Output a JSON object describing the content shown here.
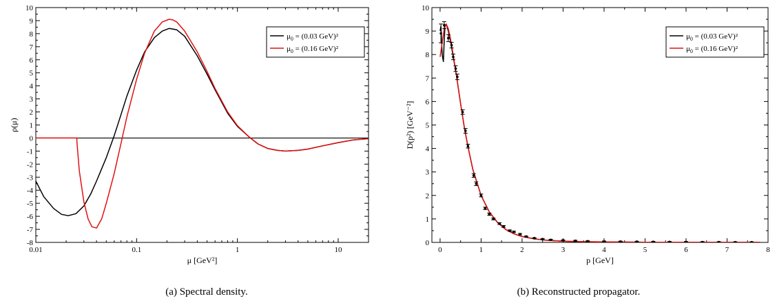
{
  "chart_data": [
    {
      "type": "line",
      "caption": "(a)  Spectral density.",
      "xlabel": "μ [GeV²]",
      "ylabel": "ρ(μ)",
      "xscale": "log",
      "xlim": [
        0.01,
        20
      ],
      "ylim": [
        -8,
        10
      ],
      "xticks": [
        {
          "v": 0.01,
          "label": "0.01"
        },
        {
          "v": 0.1,
          "label": "0.1"
        },
        {
          "v": 1,
          "label": "1"
        },
        {
          "v": 10,
          "label": "10"
        }
      ],
      "yticks": [
        -8,
        -7,
        -6,
        -5,
        -4,
        -3,
        -2,
        -1,
        0,
        1,
        2,
        3,
        4,
        5,
        6,
        7,
        8,
        9,
        10
      ],
      "legend_position": "top-right",
      "zero_line": true,
      "series": [
        {
          "name": "μ0 = (0.03 GeV)²",
          "color": "#000000",
          "x": [
            0.01,
            0.012,
            0.015,
            0.018,
            0.021,
            0.025,
            0.03,
            0.035,
            0.04,
            0.05,
            0.06,
            0.07,
            0.08,
            0.1,
            0.12,
            0.15,
            0.18,
            0.21,
            0.25,
            0.3,
            0.4,
            0.5,
            0.6,
            0.8,
            1.0,
            1.3,
            1.6,
            2.0,
            2.5,
            3.0,
            4.0,
            5.0,
            7.0,
            10,
            14,
            20
          ],
          "y": [
            -3.3,
            -4.5,
            -5.4,
            -5.85,
            -5.95,
            -5.8,
            -5.2,
            -4.3,
            -3.3,
            -1.5,
            0.2,
            1.8,
            3.2,
            5.2,
            6.6,
            7.7,
            8.2,
            8.4,
            8.3,
            7.8,
            6.3,
            4.9,
            3.7,
            1.9,
            0.9,
            0.1,
            -0.45,
            -0.8,
            -0.95,
            -1.0,
            -0.95,
            -0.85,
            -0.6,
            -0.35,
            -0.15,
            -0.05
          ]
        },
        {
          "name": "μ0 = (0.16 GeV)²",
          "color": "#e01010",
          "x": [
            0.01,
            0.0255,
            0.0256,
            0.027,
            0.03,
            0.033,
            0.036,
            0.04,
            0.045,
            0.05,
            0.06,
            0.07,
            0.08,
            0.1,
            0.12,
            0.15,
            0.18,
            0.21,
            0.23,
            0.25,
            0.3,
            0.4,
            0.5,
            0.6,
            0.8,
            1.0,
            1.3,
            1.6,
            2.0,
            2.5,
            3.0,
            4.0,
            5.0,
            7.0,
            10,
            14,
            20
          ],
          "y": [
            0,
            0,
            -0.3,
            -2.5,
            -4.9,
            -6.2,
            -6.8,
            -6.9,
            -6.2,
            -5.0,
            -2.7,
            -0.4,
            1.6,
            4.5,
            6.5,
            8.2,
            8.9,
            9.1,
            9.05,
            8.9,
            8.2,
            6.6,
            5.1,
            3.8,
            2.0,
            0.95,
            0.1,
            -0.45,
            -0.8,
            -0.95,
            -1.0,
            -0.95,
            -0.85,
            -0.6,
            -0.35,
            -0.15,
            -0.05
          ]
        }
      ]
    },
    {
      "type": "line",
      "caption": "(b)  Reconstructed propagator.",
      "xlabel": "p [GeV]",
      "ylabel": "D(p²)  [GeV⁻²]",
      "xscale": "linear",
      "xlim": [
        -0.2,
        8
      ],
      "ylim": [
        0,
        10
      ],
      "xticks": [
        {
          "v": 0,
          "label": "0"
        },
        {
          "v": 1,
          "label": "1"
        },
        {
          "v": 2,
          "label": "2"
        },
        {
          "v": 3,
          "label": "3"
        },
        {
          "v": 4,
          "label": "4"
        },
        {
          "v": 5,
          "label": "5"
        },
        {
          "v": 6,
          "label": "6"
        },
        {
          "v": 7,
          "label": "7"
        },
        {
          "v": 8,
          "label": "8"
        }
      ],
      "yticks": [
        0,
        1,
        2,
        3,
        4,
        5,
        6,
        7,
        8,
        9,
        10
      ],
      "legend_position": "top-right",
      "series": [
        {
          "name": "μ0 = (0.03 GeV)²",
          "color": "#000000",
          "x": [
            0.0,
            0.02,
            0.05,
            0.08,
            0.1,
            0.12,
            0.15,
            0.2,
            0.25,
            0.3,
            0.4,
            0.5,
            0.6,
            0.7,
            0.8,
            1.0,
            1.2,
            1.4,
            1.6,
            1.8,
            2.0,
            2.3,
            2.6,
            3.0,
            3.5,
            4.0,
            5.0,
            6.0,
            7.0,
            7.8
          ],
          "y": [
            9.0,
            9.2,
            8.0,
            7.7,
            8.6,
            9.2,
            9.3,
            9.0,
            8.6,
            8.1,
            7.1,
            5.9,
            4.8,
            3.9,
            3.1,
            2.0,
            1.3,
            0.85,
            0.55,
            0.37,
            0.25,
            0.15,
            0.09,
            0.05,
            0.03,
            0.02,
            0.01,
            0.005,
            0.003,
            0.002
          ]
        },
        {
          "name": "μ0 = (0.16 GeV)²",
          "color": "#e01010",
          "x": [
            0.0,
            0.05,
            0.1,
            0.15,
            0.2,
            0.25,
            0.3,
            0.4,
            0.5,
            0.6,
            0.7,
            0.8,
            1.0,
            1.2,
            1.4,
            1.6,
            1.8,
            2.0,
            2.3,
            2.6,
            3.0,
            3.5,
            4.0,
            5.0,
            6.0,
            7.0,
            7.8
          ],
          "y": [
            7.9,
            8.5,
            9.1,
            9.3,
            9.1,
            8.7,
            8.2,
            7.1,
            5.9,
            4.8,
            3.9,
            3.1,
            2.0,
            1.3,
            0.85,
            0.55,
            0.37,
            0.25,
            0.15,
            0.09,
            0.05,
            0.03,
            0.02,
            0.01,
            0.005,
            0.003,
            0.002
          ]
        },
        {
          "name": "",
          "type": "errorbar",
          "color": "#000000",
          "x": [
            0.02,
            0.1,
            0.2,
            0.28,
            0.32,
            0.38,
            0.42,
            0.55,
            0.62,
            0.68,
            0.82,
            0.88,
            1.0,
            1.1,
            1.2,
            1.3,
            1.45,
            1.55,
            1.7,
            1.8,
            1.95,
            2.1,
            2.3,
            2.5,
            2.7,
            3.0,
            3.3,
            3.6,
            4.0,
            4.4,
            4.8,
            5.2,
            5.6,
            6.0,
            6.4,
            6.8,
            7.2,
            7.6
          ],
          "y": [
            8.9,
            9.25,
            8.7,
            8.4,
            7.9,
            7.4,
            7.05,
            5.55,
            4.75,
            4.1,
            2.85,
            2.5,
            2.0,
            1.45,
            1.2,
            1.0,
            0.8,
            0.68,
            0.5,
            0.45,
            0.35,
            0.25,
            0.18,
            0.14,
            0.11,
            0.09,
            0.07,
            0.05,
            0.04,
            0.035,
            0.03,
            0.025,
            0.02,
            0.018,
            0.015,
            0.012,
            0.01,
            0.008
          ],
          "err": [
            0.4,
            0.15,
            0.15,
            0.12,
            0.12,
            0.12,
            0.12,
            0.1,
            0.1,
            0.08,
            0.08,
            0.08,
            0.06,
            0.05,
            0.05,
            0.04,
            0.04,
            0.04,
            0.03,
            0.03,
            0.03,
            0.02,
            0.02,
            0.02,
            0.02,
            0.02,
            0.02,
            0.02,
            0.02,
            0.02,
            0.02,
            0.02,
            0.02,
            0.02,
            0.02,
            0.02,
            0.02,
            0.02
          ]
        }
      ]
    }
  ]
}
